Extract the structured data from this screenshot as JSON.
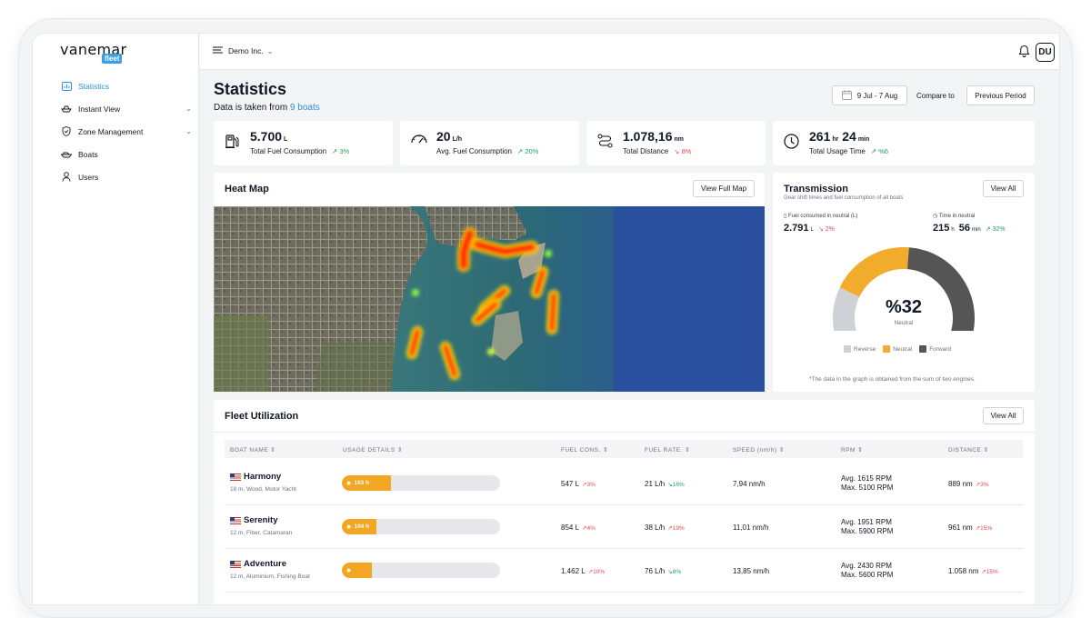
{
  "brand": {
    "name": "vanemar",
    "badge": "fleet"
  },
  "sidebar": {
    "items": [
      {
        "label": "Statistics",
        "icon": "chart-icon",
        "active": true
      },
      {
        "label": "Instant View",
        "icon": "boat-outline-icon",
        "has_submenu": true
      },
      {
        "label": "Zone Management",
        "icon": "shield-icon",
        "has_submenu": true
      },
      {
        "label": "Boats",
        "icon": "boat-icon"
      },
      {
        "label": "Users",
        "icon": "user-icon"
      }
    ]
  },
  "topbar": {
    "org": "Demo Inc.",
    "avatar": "DU"
  },
  "page": {
    "title": "Statistics",
    "subtitle_prefix": "Data is taken from",
    "subtitle_link": "9 boats",
    "date_range": "9 Jul - 7 Aug",
    "compare_label": "Compare to",
    "compare_button": "Previous Period"
  },
  "stats": [
    {
      "value": "5.700",
      "unit": "L",
      "label": "Total Fuel Consumption",
      "change": "3%",
      "trend": "up",
      "icon": "fuel-pump-icon"
    },
    {
      "value": "20",
      "unit": "L/h",
      "label": "Avg. Fuel Consumption",
      "change": "20%",
      "trend": "up",
      "icon": "gauge-icon"
    },
    {
      "value": "1.078,16",
      "unit": "nm",
      "label": "Total Distance",
      "change": "8%",
      "trend": "down",
      "icon": "route-icon"
    },
    {
      "value_hr": "261",
      "unit_hr": "hr",
      "value_min": "24",
      "unit_min": "min",
      "label": "Total Usage Time",
      "change": "%6",
      "trend": "up",
      "icon": "clock-icon"
    }
  ],
  "heatmap": {
    "title": "Heat Map",
    "button": "View Full Map"
  },
  "transmission": {
    "title": "Transmission",
    "subtitle": "Gear shift times and fuel consumption of all boats",
    "button": "View All",
    "fuel_label": "Fuel consumed in neutral (L)",
    "fuel_value": "2.791",
    "fuel_unit": "L",
    "fuel_change": "2%",
    "time_label": "Time in neutral",
    "time_h": "215",
    "time_h_unit": "h",
    "time_min": "56",
    "time_min_unit": "min",
    "time_change": "32%",
    "gauge_value": "%32",
    "gauge_label": "Neutral",
    "gauge_shares": {
      "reverse": 0.2,
      "neutral": 0.32,
      "forward": 0.48
    },
    "legend": [
      "Reverse",
      "Neutral",
      "Forward"
    ],
    "colors": {
      "reverse": "#cfd1d4",
      "neutral": "#f2ac2b",
      "forward": "#555555"
    },
    "note": "*The data in the graph is obtained from the sum of two engines."
  },
  "fleet": {
    "title": "Fleet Utilization",
    "button": "View All",
    "columns": [
      "BOAT NAME",
      "USAGE DETAILS",
      "FUEL CONS.",
      "FUEL RATE.",
      "SPEED (nm/h)",
      "RPM",
      "DISTANCE"
    ],
    "rows": [
      {
        "name": "Harmony",
        "desc": "18 m, Wood, Motor Yacht",
        "usage": "163 h",
        "usage_fraction": 0.31,
        "fuel": "547 L",
        "fuel_chg": "3%",
        "fuel_trend": "down",
        "rate": "21 L/h",
        "rate_chg": "16%",
        "rate_trend": "up",
        "speed": "7,94 nm/h",
        "rpm_avg": "Avg. 1615 RPM",
        "rpm_max": "Max. 5100 RPM",
        "distance": "889 nm",
        "dist_chg": "3%",
        "dist_trend": "down"
      },
      {
        "name": "Serenity",
        "desc": "12 m, Fiber, Catamaran",
        "usage": "104 h",
        "usage_fraction": 0.22,
        "fuel": "854 L",
        "fuel_chg": "4%",
        "fuel_trend": "down",
        "rate": "38 L/h",
        "rate_chg": "19%",
        "rate_trend": "down",
        "speed": "11,01 nm/h",
        "rpm_avg": "Avg. 1951 RPM",
        "rpm_max": "Max. 5900 RPM",
        "distance": "961 nm",
        "dist_chg": "15%",
        "dist_trend": "down"
      },
      {
        "name": "Adventure",
        "desc": "12 m, Aluminium, Fishing Boat",
        "usage": "",
        "usage_fraction": 0.19,
        "fuel": "1.462 L",
        "fuel_chg": "10%",
        "fuel_trend": "down",
        "rate": "76 L/h",
        "rate_chg": "8%",
        "rate_trend": "up",
        "speed": "13,85 nm/h",
        "rpm_avg": "Avg. 2430 RPM",
        "rpm_max": "Max. 5600 RPM",
        "distance": "1.058 nm",
        "dist_chg": "15%",
        "dist_trend": "down"
      }
    ]
  }
}
